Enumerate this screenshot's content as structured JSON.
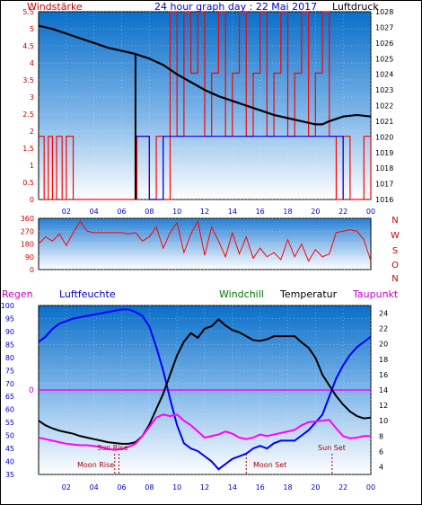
{
  "chart_data": [
    {
      "type": "line",
      "title": "24 hour graph day : 22 Mai 2017",
      "ylabel_left": "Windstärke",
      "ylabel_right": "Luftdruck",
      "x_ticks": [
        "02",
        "04",
        "06",
        "08",
        "10",
        "12",
        "14",
        "16",
        "18",
        "20",
        "22",
        "00"
      ],
      "xlim": [
        0,
        24
      ],
      "y_left_ticks": [
        "0",
        "0.5",
        "1",
        "1.5",
        "2",
        "2.5",
        "3",
        "3.5",
        "4",
        "4.5",
        "5",
        "5.5"
      ],
      "ylim_left": [
        0,
        5.5
      ],
      "y_right_ticks": [
        "1016",
        "1017",
        "1018",
        "1019",
        "1020",
        "1021",
        "1022",
        "1023",
        "1024",
        "1025",
        "1026",
        "1027",
        "1028"
      ],
      "ylim_right": [
        1016,
        1028
      ],
      "series": [
        {
          "name": "Luftdruck",
          "axis": "right",
          "color": "#000000",
          "x": [
            0,
            1,
            2,
            3,
            4,
            5,
            6,
            7,
            8,
            9,
            10,
            11,
            12,
            13,
            14,
            15,
            16,
            17,
            18,
            19,
            20,
            20.5,
            21,
            22,
            23,
            24
          ],
          "y": [
            1027.1,
            1026.9,
            1026.6,
            1026.3,
            1026.0,
            1025.7,
            1025.5,
            1025.3,
            1025.0,
            1024.6,
            1024.0,
            1023.5,
            1023.0,
            1022.6,
            1022.3,
            1022.0,
            1021.7,
            1021.4,
            1021.2,
            1021.0,
            1020.8,
            1020.8,
            1021.0,
            1021.3,
            1021.4,
            1021.3
          ]
        },
        {
          "name": "Windstärke",
          "axis": "left",
          "color": "#ff0000",
          "x": [
            0,
            0.2,
            0.4,
            0.7,
            1.0,
            1.3,
            1.7,
            2.0,
            2.5,
            3.0,
            4.0,
            5.0,
            6.0,
            6.5,
            7.0,
            7.1,
            7.5,
            8.0,
            8.5,
            9.0,
            9.5,
            10.0,
            10.5,
            11.0,
            11.5,
            12.0,
            12.5,
            13.0,
            13.5,
            14.0,
            14.5,
            15.0,
            15.5,
            16.0,
            16.5,
            17.0,
            17.5,
            18.0,
            18.5,
            19.0,
            19.5,
            20.0,
            20.5,
            21.0,
            21.5,
            22.0,
            22.5,
            23.0,
            23.5,
            24.0
          ],
          "y": [
            1.85,
            1.85,
            0,
            1.85,
            0,
            1.85,
            0,
            1.85,
            0,
            0,
            0,
            0,
            0,
            0,
            0,
            1.85,
            1.85,
            0,
            1.85,
            0,
            5.5,
            1.85,
            5.5,
            3.7,
            5.5,
            1.85,
            3.7,
            5.5,
            1.85,
            3.7,
            5.5,
            1.85,
            3.7,
            5.5,
            1.85,
            3.7,
            5.5,
            1.85,
            3.7,
            5.5,
            1.85,
            3.7,
            5.5,
            1.85,
            0,
            1.85,
            0,
            0,
            1.85,
            0
          ]
        },
        {
          "name": "Windrichtung",
          "axis": "left",
          "color": "#0000ff",
          "x": [
            7.0,
            8.0,
            9.0,
            10.0,
            11.0,
            12.0,
            13.0,
            14.0,
            15.0,
            16.0,
            17.0,
            18.0,
            19.0,
            20.0,
            21.0,
            22.0
          ],
          "y": [
            1.85,
            0,
            1.85,
            1.85,
            1.85,
            1.85,
            1.85,
            1.85,
            1.85,
            1.85,
            1.85,
            1.85,
            1.85,
            1.85,
            1.85,
            0
          ]
        }
      ]
    },
    {
      "type": "line",
      "title": "",
      "y_ticks": [
        "0",
        "90",
        "180",
        "270",
        "360"
      ],
      "ylim": [
        0,
        360
      ],
      "right_labels": [
        "N",
        "W",
        "S",
        "O",
        "N"
      ],
      "x_ticks": [
        "02",
        "04",
        "06",
        "08",
        "10",
        "12",
        "14",
        "16",
        "18",
        "20",
        "22",
        "00"
      ],
      "xlim": [
        0,
        24
      ],
      "series": [
        {
          "name": "Windrichtung",
          "color": "#ff0000",
          "x": [
            0,
            0.5,
            1,
            1.5,
            2,
            2.5,
            3,
            3.5,
            4,
            4.5,
            5,
            5.5,
            6,
            6.5,
            7,
            7.5,
            8,
            8.5,
            9,
            9.5,
            10,
            10.5,
            11,
            11.5,
            12,
            12.5,
            13,
            13.5,
            14,
            14.5,
            15,
            15.5,
            16,
            16.5,
            17,
            17.5,
            18,
            18.5,
            19,
            19.5,
            20,
            20.5,
            21,
            21.5,
            22,
            22.5,
            23,
            23.5,
            24
          ],
          "y": [
            180,
            230,
            200,
            250,
            170,
            260,
            340,
            270,
            260,
            260,
            260,
            260,
            260,
            250,
            260,
            200,
            230,
            300,
            150,
            260,
            330,
            120,
            250,
            340,
            100,
            300,
            200,
            90,
            260,
            110,
            230,
            80,
            150,
            90,
            120,
            70,
            210,
            90,
            180,
            60,
            140,
            90,
            110,
            260,
            270,
            280,
            270,
            210,
            60
          ]
        }
      ]
    },
    {
      "type": "line",
      "labels": {
        "regen": "Regen",
        "luftfeuchte": "Luftfeuchte",
        "windchill": "Windchill",
        "temperatur": "Temperatur",
        "taupunkt": "Taupunkt"
      },
      "annotations": [
        "Sun Rise",
        "Moon Rise",
        "Moon Set",
        "Sun Set"
      ],
      "annotation_x": [
        5.8,
        5.5,
        15.0,
        21.2
      ],
      "x_ticks": [
        "02",
        "04",
        "06",
        "08",
        "10",
        "12",
        "14",
        "16",
        "18",
        "20",
        "22",
        "00"
      ],
      "xlim": [
        0,
        24
      ],
      "y_left_ticks": [
        "35",
        "40",
        "45",
        "50",
        "55",
        "60",
        "65",
        "70",
        "75",
        "80",
        "85",
        "90",
        "95",
        "100"
      ],
      "ylim_left": [
        35,
        100
      ],
      "y_right_ticks": [
        "4",
        "6",
        "8",
        "10",
        "12",
        "14",
        "16",
        "18",
        "20",
        "22",
        "24"
      ],
      "ylim_right": [
        3,
        25
      ],
      "regen_value": "0",
      "series": [
        {
          "name": "Luftfeuchte",
          "axis": "left",
          "color": "#0000ff",
          "x": [
            0,
            0.5,
            1,
            1.5,
            2,
            2.5,
            3,
            3.5,
            4,
            4.5,
            5,
            5.5,
            6,
            6.5,
            7,
            7.5,
            8,
            8.5,
            9,
            9.5,
            10,
            10.5,
            11,
            11.5,
            12,
            12.5,
            13,
            13.5,
            14,
            14.5,
            15,
            15.5,
            16,
            16.5,
            17,
            17.5,
            18,
            18.5,
            19,
            19.5,
            20,
            20.5,
            21,
            21.5,
            22,
            22.5,
            23,
            23.5,
            24
          ],
          "y": [
            86,
            88,
            91,
            93,
            94,
            95,
            95.5,
            96,
            96.5,
            97,
            97.5,
            98,
            98.5,
            98.5,
            97.5,
            96,
            92,
            84,
            75,
            64,
            54,
            47,
            45,
            44,
            42,
            40,
            37,
            39,
            41,
            42,
            43,
            45,
            46,
            45,
            47,
            48,
            48,
            48,
            50,
            52,
            55,
            58,
            65,
            72,
            77,
            81,
            84,
            86,
            88
          ]
        },
        {
          "name": "Temperatur",
          "axis": "right",
          "color": "#000000",
          "x": [
            0,
            0.5,
            1,
            1.5,
            2,
            2.5,
            3,
            3.5,
            4,
            4.5,
            5,
            5.5,
            6,
            6.5,
            7,
            7.5,
            8,
            8.5,
            9,
            9.5,
            10,
            10.5,
            11,
            11.5,
            12,
            12.5,
            13,
            13.5,
            14,
            14.5,
            15,
            15.5,
            16,
            16.5,
            17,
            17.5,
            18,
            18.5,
            19,
            19.5,
            20,
            20.5,
            21,
            21.5,
            22,
            22.5,
            23,
            23.5,
            24
          ],
          "y": [
            10,
            9.4,
            9,
            8.7,
            8.5,
            8.3,
            8.0,
            7.8,
            7.6,
            7.4,
            7.2,
            7.1,
            7.0,
            7.0,
            7.2,
            8.0,
            9.5,
            11.5,
            13.5,
            16,
            18.5,
            20.3,
            21.4,
            20.8,
            22,
            22.3,
            23.2,
            22.4,
            21.8,
            21.5,
            21,
            20.5,
            20.4,
            20.6,
            21,
            21,
            21,
            21,
            20.2,
            19.5,
            18.2,
            16,
            14.6,
            13.2,
            12.1,
            11.2,
            10.6,
            10.3,
            10.4
          ]
        },
        {
          "name": "Taupunkt",
          "axis": "right",
          "color": "#ff00ff",
          "x": [
            0,
            0.5,
            1,
            1.5,
            2,
            2.5,
            3,
            3.5,
            4,
            4.5,
            5,
            5.5,
            6,
            6.5,
            7,
            7.5,
            8,
            8.5,
            9,
            9.5,
            10,
            10.5,
            11,
            11.5,
            12,
            12.5,
            13,
            13.5,
            14,
            14.5,
            15,
            15.5,
            16,
            16.5,
            17,
            17.5,
            18,
            18.5,
            19,
            19.5,
            20,
            20.5,
            21,
            21.5,
            22,
            22.5,
            23,
            23.5,
            24
          ],
          "y": [
            7.8,
            7.6,
            7.4,
            7.2,
            7.0,
            6.9,
            6.8,
            6.8,
            6.7,
            6.6,
            6.3,
            6.2,
            6.3,
            6.6,
            7.0,
            8.0,
            9.2,
            10.4,
            10.8,
            10.6,
            10.8,
            10.0,
            9.4,
            8.6,
            7.8,
            8.0,
            8.2,
            8.6,
            8.3,
            7.8,
            7.6,
            7.8,
            8.2,
            8.0,
            8.2,
            8.4,
            8.6,
            8.8,
            9.4,
            9.8,
            9.9,
            10.0,
            10.1,
            9.0,
            8.0,
            7.7,
            7.8,
            8.0,
            8.0
          ]
        }
      ]
    }
  ]
}
